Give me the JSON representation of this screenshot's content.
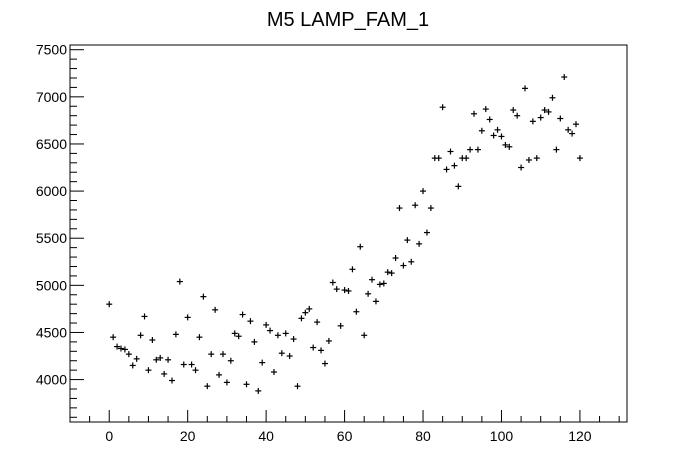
{
  "chart_data": {
    "type": "scatter",
    "title": "M5 LAMP_FAM_1",
    "xlabel": "",
    "ylabel": "",
    "xlim": [
      -10,
      132
    ],
    "ylim": [
      3550,
      7550
    ],
    "x_major_ticks": [
      0,
      20,
      40,
      60,
      80,
      100,
      120
    ],
    "x_tick_labels": [
      "0",
      "20",
      "40",
      "60",
      "80",
      "100",
      "120"
    ],
    "y_major_ticks": [
      4000,
      4500,
      5000,
      5500,
      6000,
      6500,
      7000,
      7500
    ],
    "y_tick_labels": [
      "4000",
      "4500",
      "5000",
      "5500",
      "6000",
      "6500",
      "7000",
      "7500"
    ],
    "grid": false,
    "legend": "none",
    "marker": "+",
    "points": [
      [
        0,
        4800
      ],
      [
        1,
        4450
      ],
      [
        2,
        4350
      ],
      [
        3,
        4330
      ],
      [
        4,
        4320
      ],
      [
        5,
        4270
      ],
      [
        6,
        4150
      ],
      [
        7,
        4220
      ],
      [
        8,
        4470
      ],
      [
        9,
        4670
      ],
      [
        10,
        4100
      ],
      [
        11,
        4420
      ],
      [
        12,
        4210
      ],
      [
        13,
        4230
      ],
      [
        14,
        4060
      ],
      [
        15,
        4210
      ],
      [
        16,
        3990
      ],
      [
        17,
        4480
      ],
      [
        18,
        5040
      ],
      [
        19,
        4160
      ],
      [
        20,
        4660
      ],
      [
        21,
        4160
      ],
      [
        22,
        4100
      ],
      [
        23,
        4450
      ],
      [
        24,
        4880
      ],
      [
        25,
        3930
      ],
      [
        26,
        4270
      ],
      [
        27,
        4740
      ],
      [
        28,
        4050
      ],
      [
        29,
        4270
      ],
      [
        30,
        3970
      ],
      [
        31,
        4200
      ],
      [
        32,
        4490
      ],
      [
        33,
        4460
      ],
      [
        34,
        4690
      ],
      [
        35,
        3950
      ],
      [
        36,
        4620
      ],
      [
        37,
        4400
      ],
      [
        38,
        3880
      ],
      [
        39,
        4180
      ],
      [
        40,
        4580
      ],
      [
        41,
        4520
      ],
      [
        42,
        4080
      ],
      [
        43,
        4470
      ],
      [
        44,
        4280
      ],
      [
        45,
        4490
      ],
      [
        46,
        4250
      ],
      [
        47,
        4430
      ],
      [
        48,
        3930
      ],
      [
        49,
        4650
      ],
      [
        50,
        4710
      ],
      [
        51,
        4750
      ],
      [
        52,
        4340
      ],
      [
        53,
        4610
      ],
      [
        54,
        4310
      ],
      [
        55,
        4170
      ],
      [
        56,
        4410
      ],
      [
        57,
        5030
      ],
      [
        58,
        4960
      ],
      [
        59,
        4570
      ],
      [
        60,
        4950
      ],
      [
        61,
        4940
      ],
      [
        62,
        5170
      ],
      [
        63,
        4720
      ],
      [
        64,
        5410
      ],
      [
        65,
        4470
      ],
      [
        66,
        4910
      ],
      [
        67,
        5060
      ],
      [
        68,
        4830
      ],
      [
        69,
        5010
      ],
      [
        70,
        5020
      ],
      [
        71,
        5140
      ],
      [
        72,
        5130
      ],
      [
        73,
        5290
      ],
      [
        74,
        5820
      ],
      [
        75,
        5210
      ],
      [
        76,
        5480
      ],
      [
        77,
        5250
      ],
      [
        78,
        5850
      ],
      [
        79,
        5440
      ],
      [
        80,
        6000
      ],
      [
        81,
        5560
      ],
      [
        82,
        5820
      ],
      [
        83,
        6350
      ],
      [
        84,
        6350
      ],
      [
        85,
        6890
      ],
      [
        86,
        6230
      ],
      [
        87,
        6420
      ],
      [
        88,
        6270
      ],
      [
        89,
        6050
      ],
      [
        90,
        6350
      ],
      [
        91,
        6350
      ],
      [
        92,
        6440
      ],
      [
        93,
        6820
      ],
      [
        94,
        6440
      ],
      [
        95,
        6640
      ],
      [
        96,
        6870
      ],
      [
        97,
        6760
      ],
      [
        98,
        6590
      ],
      [
        99,
        6650
      ],
      [
        100,
        6580
      ],
      [
        101,
        6490
      ],
      [
        102,
        6470
      ],
      [
        103,
        6860
      ],
      [
        104,
        6800
      ],
      [
        105,
        6250
      ],
      [
        106,
        7090
      ],
      [
        107,
        6330
      ],
      [
        108,
        6740
      ],
      [
        109,
        6350
      ],
      [
        110,
        6780
      ],
      [
        111,
        6860
      ],
      [
        112,
        6840
      ],
      [
        113,
        6990
      ],
      [
        114,
        6440
      ],
      [
        115,
        6770
      ],
      [
        116,
        7210
      ],
      [
        117,
        6650
      ],
      [
        118,
        6610
      ],
      [
        119,
        6710
      ],
      [
        120,
        6350
      ]
    ]
  }
}
